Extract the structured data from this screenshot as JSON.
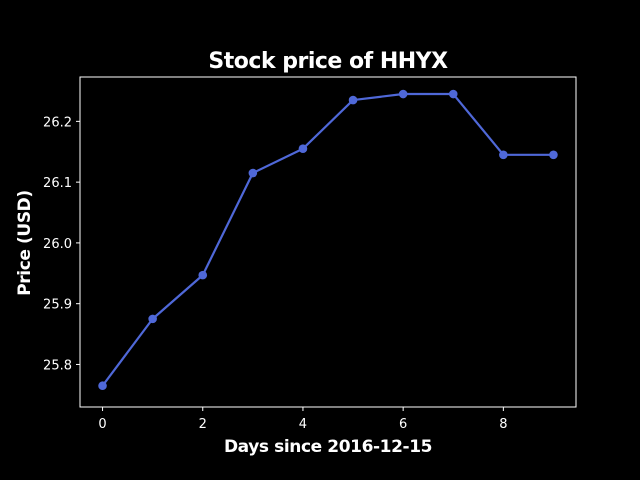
{
  "chart_data": {
    "type": "line",
    "title": "Stock price of HHYX",
    "xlabel": "Days since 2016-12-15",
    "ylabel": "Price (USD)",
    "x": [
      0,
      1,
      2,
      3,
      4,
      5,
      6,
      7,
      8,
      9
    ],
    "series": [
      {
        "values": [
          25.765,
          25.875,
          25.947,
          26.115,
          26.155,
          26.235,
          26.245,
          26.245,
          26.145,
          26.145
        ],
        "color": "#4f68d8"
      }
    ],
    "xlim": [
      -0.45,
      9.45
    ],
    "ylim": [
      25.73,
      26.273
    ],
    "xticks": [
      0,
      2,
      4,
      6,
      8
    ],
    "xtick_labels": [
      "0",
      "2",
      "4",
      "6",
      "8"
    ],
    "yticks": [
      25.8,
      25.9,
      26.0,
      26.1,
      26.2
    ],
    "ytick_labels": [
      "25.8",
      "25.9",
      "26.0",
      "26.1",
      "26.2"
    ],
    "grid": false,
    "background": "#000000",
    "axis_color": "#ffffff"
  }
}
